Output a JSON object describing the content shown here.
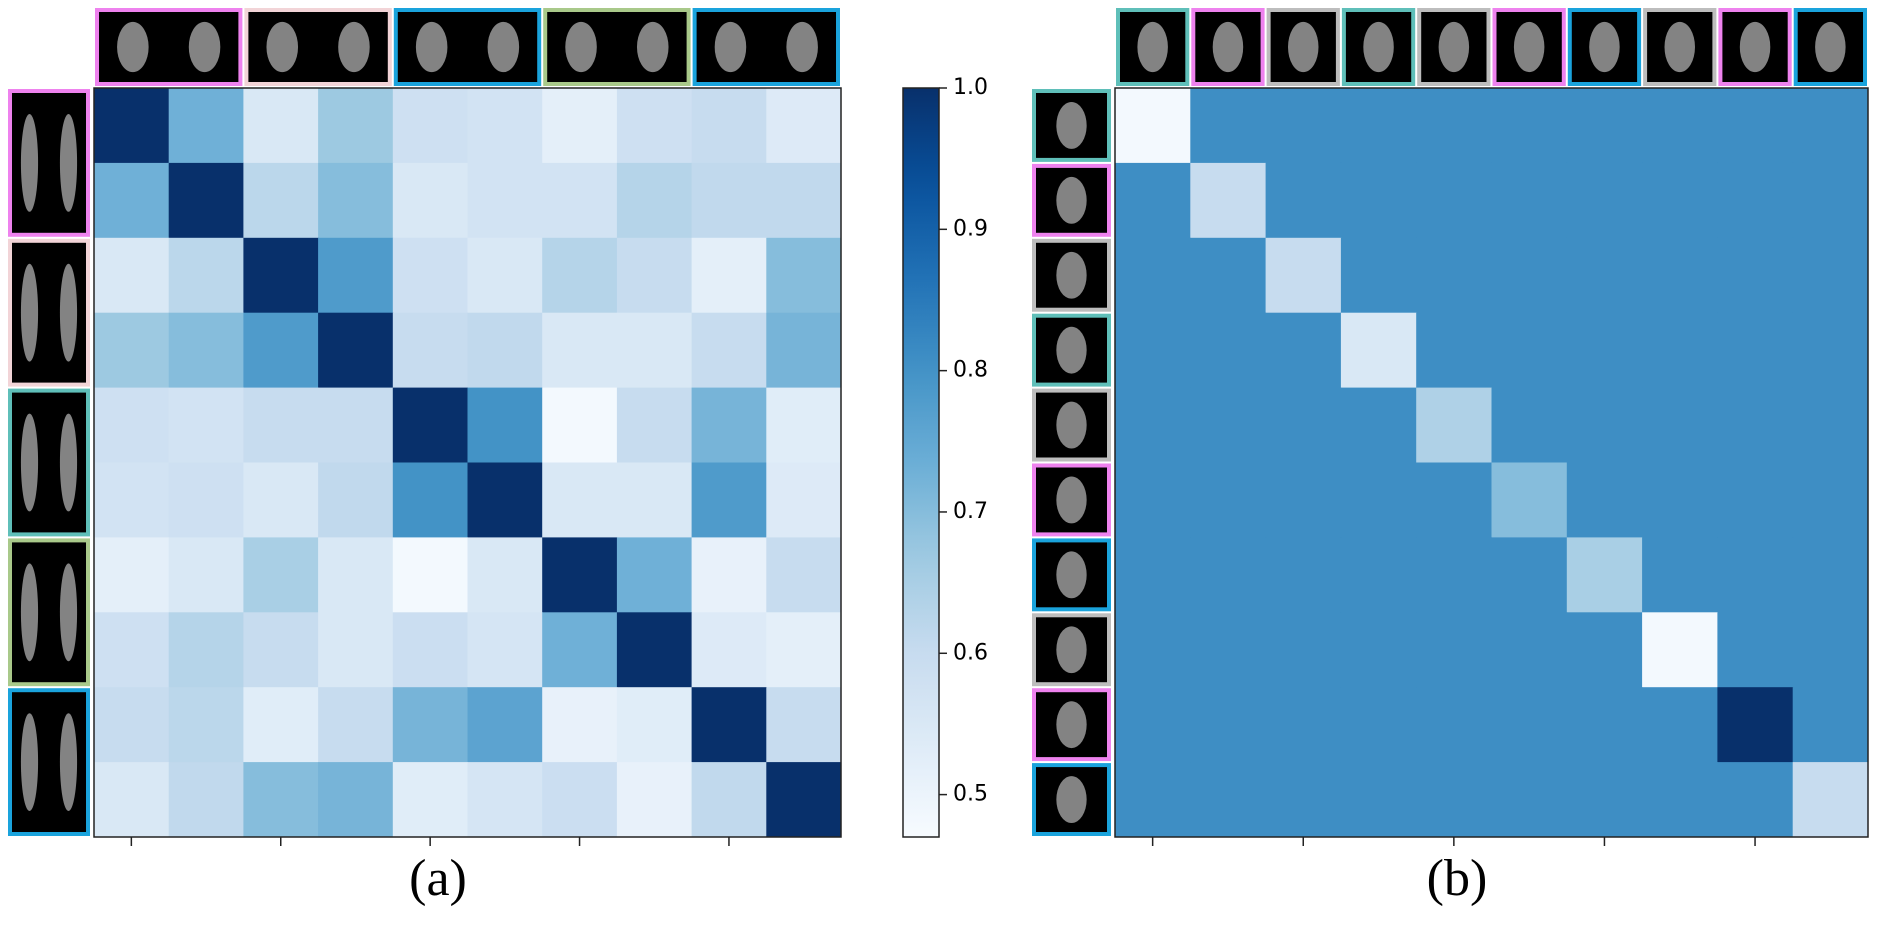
{
  "chart_data": [
    {
      "type": "heatmap",
      "title": "(a)",
      "colormap": "Blues",
      "zlim": [
        0.47,
        1.0
      ],
      "zticks": [
        0.5,
        0.6,
        0.7,
        0.8,
        0.9,
        {
          "value": 1,
          "label": "1.0"
        }
      ],
      "xticks": [
        0,
        2,
        4,
        6,
        8
      ],
      "values": [
        [
          1.0,
          0.73,
          0.55,
          0.67,
          0.58,
          0.57,
          0.52,
          0.58,
          0.6,
          0.54
        ],
        [
          0.73,
          1.0,
          0.62,
          0.7,
          0.55,
          0.57,
          0.57,
          0.63,
          0.61,
          0.61
        ],
        [
          0.55,
          0.62,
          1.0,
          0.78,
          0.58,
          0.55,
          0.63,
          0.6,
          0.52,
          0.7
        ],
        [
          0.67,
          0.7,
          0.78,
          1.0,
          0.6,
          0.61,
          0.55,
          0.55,
          0.6,
          0.72
        ],
        [
          0.58,
          0.57,
          0.6,
          0.6,
          1.0,
          0.8,
          0.48,
          0.6,
          0.72,
          0.53
        ],
        [
          0.57,
          0.58,
          0.55,
          0.61,
          0.8,
          1.0,
          0.55,
          0.55,
          0.78,
          0.54
        ],
        [
          0.52,
          0.55,
          0.65,
          0.55,
          0.48,
          0.55,
          1.0,
          0.73,
          0.51,
          0.6
        ],
        [
          0.58,
          0.63,
          0.6,
          0.55,
          0.59,
          0.56,
          0.73,
          1.0,
          0.54,
          0.52
        ],
        [
          0.6,
          0.62,
          0.53,
          0.6,
          0.72,
          0.76,
          0.51,
          0.53,
          1.0,
          0.6
        ],
        [
          0.55,
          0.61,
          0.7,
          0.72,
          0.53,
          0.56,
          0.59,
          0.51,
          0.61,
          1.0
        ]
      ]
    },
    {
      "type": "heatmap",
      "title": "(b)",
      "colormap": "Blues",
      "zlim": [
        0.47,
        1.0
      ],
      "xticks": [
        0,
        2,
        4,
        6,
        8
      ],
      "values": [
        [
          0.48,
          0.81,
          0.81,
          0.81,
          0.81,
          0.81,
          0.81,
          0.81,
          0.81,
          0.81
        ],
        [
          0.81,
          0.6,
          0.81,
          0.81,
          0.81,
          0.81,
          0.81,
          0.81,
          0.81,
          0.81
        ],
        [
          0.81,
          0.81,
          0.6,
          0.81,
          0.81,
          0.81,
          0.81,
          0.81,
          0.81,
          0.81
        ],
        [
          0.81,
          0.81,
          0.81,
          0.55,
          0.81,
          0.81,
          0.81,
          0.81,
          0.81,
          0.81
        ],
        [
          0.81,
          0.81,
          0.81,
          0.81,
          0.64,
          0.81,
          0.81,
          0.81,
          0.81,
          0.81
        ],
        [
          0.81,
          0.81,
          0.81,
          0.81,
          0.81,
          0.7,
          0.81,
          0.81,
          0.81,
          0.81
        ],
        [
          0.81,
          0.81,
          0.81,
          0.81,
          0.81,
          0.81,
          0.65,
          0.81,
          0.81,
          0.81
        ],
        [
          0.81,
          0.81,
          0.81,
          0.81,
          0.81,
          0.81,
          0.81,
          0.48,
          0.81,
          0.81
        ],
        [
          0.81,
          0.81,
          0.81,
          0.81,
          0.81,
          0.81,
          0.81,
          0.81,
          1.0,
          0.81
        ],
        [
          0.81,
          0.81,
          0.81,
          0.81,
          0.81,
          0.81,
          0.81,
          0.81,
          0.81,
          0.6
        ]
      ]
    }
  ]
}
